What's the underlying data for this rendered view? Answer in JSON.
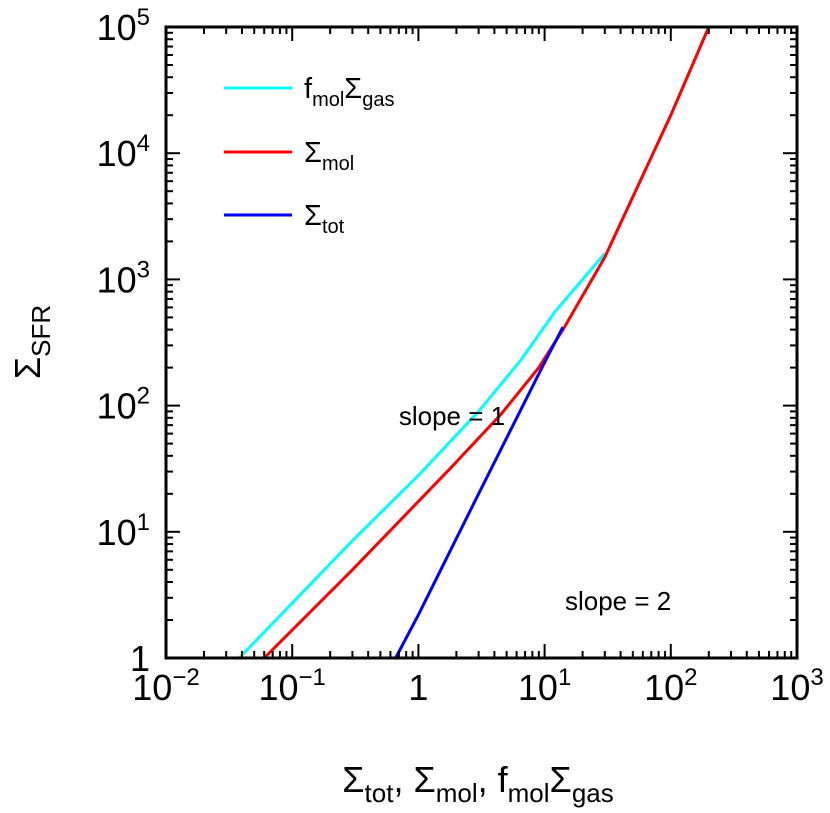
{
  "chart_data": {
    "type": "line",
    "x_scale": "log",
    "y_scale": "log",
    "xlim": [
      0.01,
      1000
    ],
    "ylim": [
      1,
      100000
    ],
    "grid": false,
    "legend_position": "top-left",
    "x_ticks": [
      {
        "value": 0.01,
        "base": "10",
        "exp": "−2"
      },
      {
        "value": 0.1,
        "base": "10",
        "exp": "−1"
      },
      {
        "value": 1,
        "base": "1",
        "exp": ""
      },
      {
        "value": 10,
        "base": "10",
        "exp": "1"
      },
      {
        "value": 100,
        "base": "10",
        "exp": "2"
      },
      {
        "value": 1000,
        "base": "10",
        "exp": "3"
      }
    ],
    "y_ticks": [
      {
        "value": 1,
        "base": "1",
        "exp": ""
      },
      {
        "value": 10,
        "base": "10",
        "exp": "1"
      },
      {
        "value": 100,
        "base": "10",
        "exp": "2"
      },
      {
        "value": 1000,
        "base": "10",
        "exp": "3"
      },
      {
        "value": 10000,
        "base": "10",
        "exp": "4"
      },
      {
        "value": 100000,
        "base": "10",
        "exp": "5"
      }
    ],
    "xlabel": {
      "t1": "Σ",
      "s1": "tot",
      "t2": ", Σ",
      "s2": "mol",
      "t3": ", f",
      "s3": "mol",
      "t4": "Σ",
      "s4": "gas"
    },
    "ylabel": {
      "t1": "Σ",
      "s1": "SFR"
    },
    "series": [
      {
        "key": "fmol_sigma_gas",
        "legend": {
          "t1": "f",
          "s1": "mol",
          "t2": "Σ",
          "s2": "gas"
        },
        "color": "#00ffff",
        "x": [
          0.038,
          0.3,
          1.0,
          3.0,
          6.5,
          12,
          20,
          30
        ],
        "y": [
          1,
          8.5,
          28,
          90,
          230,
          550,
          1000,
          1600
        ]
      },
      {
        "key": "sigma_mol",
        "legend": {
          "t1": "Σ",
          "s1": "mol",
          "t2": "",
          "s2": ""
        },
        "color": "#ff0000",
        "x": [
          0.06,
          0.3,
          1.8,
          4.5,
          9,
          14,
          30,
          100,
          200
        ],
        "y": [
          1,
          5,
          32,
          85,
          200,
          400,
          1500,
          20000,
          100000
        ]
      },
      {
        "key": "sigma_tot",
        "legend": {
          "t1": "Σ",
          "s1": "tot",
          "t2": "",
          "s2": ""
        },
        "color": "#0000ff",
        "x": [
          0.66,
          1.0,
          3.0,
          10.0,
          14.0
        ],
        "y": [
          1,
          2.2,
          20,
          220,
          420
        ]
      }
    ],
    "annotations": [
      {
        "key": "slope1",
        "text": "slope = 1",
        "x": 0.7,
        "y": 70
      },
      {
        "key": "slope2",
        "text": "slope = 2",
        "x": 14.5,
        "y": 2.4
      }
    ]
  }
}
